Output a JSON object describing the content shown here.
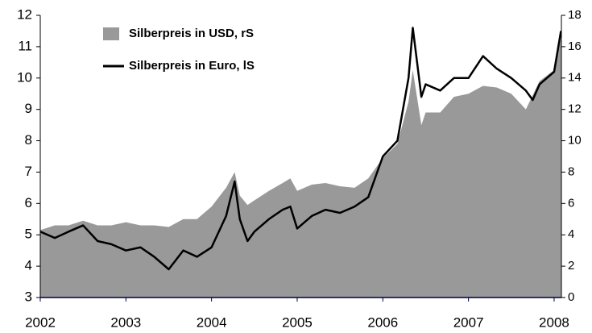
{
  "chart_data": {
    "type": "line",
    "x": [
      2002.0,
      2002.17,
      2002.33,
      2002.5,
      2002.67,
      2002.83,
      2003.0,
      2003.17,
      2003.33,
      2003.5,
      2003.67,
      2003.83,
      2004.0,
      2004.17,
      2004.27,
      2004.33,
      2004.42,
      2004.5,
      2004.67,
      2004.83,
      2004.92,
      2005.0,
      2005.17,
      2005.33,
      2005.5,
      2005.67,
      2005.83,
      2006.0,
      2006.17,
      2006.3,
      2006.35,
      2006.45,
      2006.5,
      2006.67,
      2006.83,
      2007.0,
      2007.17,
      2007.33,
      2007.5,
      2007.67,
      2007.75,
      2007.83,
      2008.0,
      2008.08
    ],
    "series": [
      {
        "name": "Silberpreis in USD, rS",
        "style": "area",
        "axis": "y2",
        "color": "#999999",
        "values": [
          4.3,
          4.6,
          4.6,
          4.9,
          4.6,
          4.6,
          4.8,
          4.6,
          4.6,
          4.5,
          5.0,
          5.0,
          5.8,
          7.0,
          8.0,
          6.5,
          5.9,
          6.2,
          6.8,
          7.3,
          7.6,
          6.8,
          7.2,
          7.3,
          7.1,
          7.0,
          7.6,
          8.9,
          9.8,
          12.5,
          14.5,
          11.0,
          11.8,
          11.8,
          12.8,
          13.0,
          13.5,
          13.4,
          13.0,
          12.0,
          12.9,
          13.8,
          14.5,
          16.5
        ]
      },
      {
        "name": "Silberpreis in Euro, lS",
        "style": "line",
        "axis": "y",
        "color": "#000000",
        "values": [
          5.1,
          4.9,
          5.1,
          5.3,
          4.8,
          4.7,
          4.5,
          4.6,
          4.3,
          3.9,
          4.5,
          4.3,
          4.6,
          5.6,
          6.7,
          5.5,
          4.8,
          5.1,
          5.5,
          5.8,
          5.9,
          5.2,
          5.6,
          5.8,
          5.7,
          5.9,
          6.2,
          7.5,
          8.0,
          10.0,
          11.6,
          9.4,
          9.8,
          9.6,
          10.0,
          10.0,
          10.7,
          10.3,
          10.0,
          9.6,
          9.3,
          9.8,
          10.2,
          11.5
        ]
      }
    ],
    "xlim": [
      2002,
      2008.085
    ],
    "xticks": [
      2002,
      2003,
      2004,
      2005,
      2006,
      2007,
      2008
    ],
    "ylim": [
      3,
      12
    ],
    "yticks": [
      3,
      4,
      5,
      6,
      7,
      8,
      9,
      10,
      11,
      12
    ],
    "y2lim": [
      0,
      18
    ],
    "y2ticks": [
      0,
      2,
      4,
      6,
      8,
      10,
      12,
      14,
      16,
      18
    ],
    "legend": "top-left"
  }
}
